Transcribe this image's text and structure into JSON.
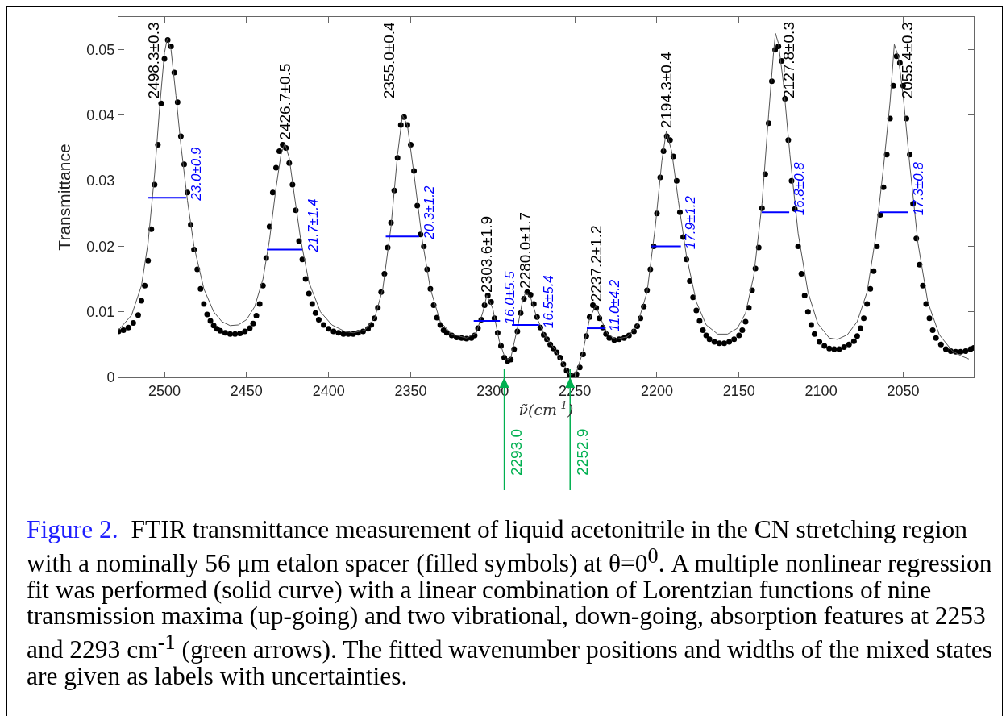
{
  "chart_data": {
    "type": "scatter",
    "xlabel": "ν̃(cm$^{-1}$)",
    "ylabel": "Transmittance",
    "xlim": [
      2528,
      2007
    ],
    "ylim": [
      0,
      0.055
    ],
    "xticks": [
      2500,
      2450,
      2400,
      2350,
      2300,
      2250,
      2200,
      2150,
      2100,
      2050
    ],
    "yticks": [
      0,
      0.01,
      0.02,
      0.03,
      0.04,
      0.05
    ],
    "grid": false,
    "ref_lines": [
      {
        "axis": "x",
        "value": 2293.0,
        "label": "2293.0",
        "color": "#00b050"
      },
      {
        "axis": "x",
        "value": 2252.9,
        "label": "2252.9",
        "color": "#00b050"
      }
    ],
    "series": [
      {
        "marker": "circle",
        "color": "#000000",
        "x": [
          2528,
          2525,
          2522,
          2519,
          2516,
          2514,
          2512,
          2510,
          2508,
          2506,
          2504,
          2502,
          2500,
          2498,
          2496,
          2494,
          2492,
          2490,
          2488,
          2486,
          2484,
          2482,
          2480,
          2478,
          2476,
          2474,
          2472,
          2470,
          2468,
          2466,
          2463,
          2460,
          2457,
          2454,
          2451,
          2448,
          2446,
          2444,
          2442,
          2440,
          2438,
          2436,
          2434,
          2432,
          2430,
          2428,
          2426,
          2424,
          2422,
          2420,
          2418,
          2416,
          2414,
          2412,
          2410,
          2408,
          2406,
          2403,
          2400,
          2397,
          2394,
          2391,
          2388,
          2385,
          2382,
          2379,
          2376,
          2374,
          2372,
          2370,
          2368,
          2366,
          2364,
          2362,
          2360,
          2358,
          2356,
          2354,
          2352,
          2350,
          2348,
          2346,
          2344,
          2342,
          2340,
          2338,
          2336,
          2334,
          2332,
          2330,
          2328,
          2325,
          2322,
          2319,
          2316,
          2313,
          2311,
          2309,
          2307,
          2305,
          2303,
          2301,
          2299,
          2297,
          2295,
          2293,
          2291,
          2289,
          2287,
          2285,
          2283,
          2281,
          2279,
          2277,
          2275,
          2273,
          2271,
          2269,
          2267,
          2265,
          2263,
          2261,
          2259,
          2257,
          2255,
          2253,
          2251,
          2249,
          2247,
          2245,
          2243,
          2241,
          2239,
          2237,
          2235,
          2233,
          2231,
          2229,
          2226,
          2223,
          2220,
          2217,
          2214,
          2212,
          2210,
          2208,
          2206,
          2204,
          2202,
          2200,
          2198,
          2196,
          2194,
          2192,
          2190,
          2188,
          2186,
          2184,
          2182,
          2180,
          2178,
          2176,
          2174,
          2172,
          2170,
          2168,
          2165,
          2162,
          2159,
          2156,
          2153,
          2150,
          2148,
          2146,
          2144,
          2142,
          2140,
          2138,
          2136,
          2134,
          2132,
          2130,
          2128,
          2126,
          2124,
          2122,
          2120,
          2118,
          2116,
          2114,
          2112,
          2110,
          2108,
          2106,
          2104,
          2101,
          2098,
          2095,
          2092,
          2089,
          2086,
          2083,
          2080,
          2078,
          2076,
          2074,
          2072,
          2070,
          2068,
          2066,
          2064,
          2062,
          2060,
          2058,
          2056,
          2054,
          2052,
          2050,
          2048,
          2046,
          2044,
          2042,
          2040,
          2038,
          2036,
          2034,
          2032,
          2030,
          2027,
          2024,
          2021,
          2018,
          2015,
          2012,
          2009,
          2007
        ],
        "values": [
          0.007,
          0.0072,
          0.0076,
          0.0083,
          0.0095,
          0.0117,
          0.014,
          0.0178,
          0.0226,
          0.0294,
          0.0355,
          0.0418,
          0.0486,
          0.0515,
          0.0505,
          0.0465,
          0.042,
          0.0368,
          0.0325,
          0.0282,
          0.0233,
          0.0195,
          0.0165,
          0.0135,
          0.0112,
          0.0096,
          0.0086,
          0.0079,
          0.0074,
          0.0071,
          0.0068,
          0.0066,
          0.0066,
          0.0067,
          0.007,
          0.0075,
          0.0082,
          0.0094,
          0.0112,
          0.014,
          0.0182,
          0.023,
          0.0282,
          0.032,
          0.0345,
          0.0355,
          0.035,
          0.0327,
          0.0294,
          0.0255,
          0.0208,
          0.018,
          0.015,
          0.0128,
          0.0112,
          0.0098,
          0.0088,
          0.008,
          0.0074,
          0.007,
          0.0068,
          0.0066,
          0.0066,
          0.0066,
          0.0068,
          0.007,
          0.0074,
          0.008,
          0.009,
          0.0106,
          0.013,
          0.0158,
          0.0198,
          0.0236,
          0.0285,
          0.0335,
          0.0385,
          0.0397,
          0.0385,
          0.0355,
          0.0315,
          0.0262,
          0.0218,
          0.02,
          0.0165,
          0.0135,
          0.011,
          0.0091,
          0.008,
          0.0072,
          0.0068,
          0.0064,
          0.0061,
          0.006,
          0.0059,
          0.006,
          0.0064,
          0.0075,
          0.0088,
          0.011,
          0.0125,
          0.0115,
          0.009,
          0.0068,
          0.0048,
          0.003,
          0.0025,
          0.0027,
          0.0043,
          0.007,
          0.0098,
          0.012,
          0.013,
          0.0126,
          0.0112,
          0.0092,
          0.0076,
          0.0065,
          0.0058,
          0.005,
          0.0044,
          0.0038,
          0.003,
          0.002,
          0.001,
          0.0003,
          0.0002,
          0.0005,
          0.0015,
          0.0035,
          0.0063,
          0.0092,
          0.011,
          0.0106,
          0.009,
          0.0076,
          0.0066,
          0.006,
          0.0057,
          0.0058,
          0.006,
          0.0064,
          0.007,
          0.0078,
          0.009,
          0.0108,
          0.0133,
          0.0165,
          0.02,
          0.025,
          0.0305,
          0.0345,
          0.0368,
          0.0362,
          0.0337,
          0.03,
          0.0252,
          0.0214,
          0.018,
          0.0147,
          0.0122,
          0.0102,
          0.0086,
          0.0072,
          0.0064,
          0.0058,
          0.0054,
          0.0052,
          0.0052,
          0.0054,
          0.0058,
          0.0064,
          0.0072,
          0.0085,
          0.0106,
          0.0133,
          0.0166,
          0.0198,
          0.0258,
          0.031,
          0.0388,
          0.0452,
          0.05,
          0.0505,
          0.0483,
          0.0425,
          0.0362,
          0.03,
          0.0257,
          0.02,
          0.0158,
          0.0125,
          0.01,
          0.008,
          0.0066,
          0.0054,
          0.0048,
          0.0044,
          0.0043,
          0.0043,
          0.0046,
          0.005,
          0.0055,
          0.0063,
          0.0075,
          0.009,
          0.0112,
          0.0135,
          0.0162,
          0.02,
          0.0248,
          0.029,
          0.034,
          0.0395,
          0.0445,
          0.049,
          0.048,
          0.0445,
          0.0395,
          0.034,
          0.0265,
          0.0212,
          0.0172,
          0.014,
          0.0112,
          0.009,
          0.0072,
          0.006,
          0.005,
          0.0043,
          0.004,
          0.0039,
          0.0039,
          0.004,
          0.0043,
          0.0045
        ]
      },
      {
        "type": "line",
        "marker": "none",
        "color": "#555555",
        "x": [
          2528,
          2520,
          2514,
          2510,
          2506,
          2503,
          2500,
          2498.3,
          2496,
          2493,
          2490,
          2486,
          2482,
          2476,
          2470,
          2465,
          2460,
          2455,
          2450,
          2445,
          2440,
          2436,
          2432,
          2429,
          2426.7,
          2424,
          2421,
          2417,
          2412,
          2405,
          2398,
          2390,
          2385,
          2378,
          2372,
          2367,
          2362,
          2358,
          2355,
          2352,
          2348,
          2343,
          2338,
          2332,
          2325,
          2316,
          2310,
          2306,
          2303.6,
          2300,
          2296,
          2292,
          2289,
          2285,
          2282,
          2280,
          2277,
          2273,
          2268,
          2262,
          2257,
          2253,
          2249,
          2245,
          2241,
          2237.2,
          2234,
          2230,
          2225,
          2218,
          2212,
          2206,
          2201,
          2197,
          2194.3,
          2191,
          2187,
          2182,
          2176,
          2170,
          2163,
          2157,
          2151,
          2146,
          2141,
          2136,
          2132,
          2129,
          2127.8,
          2126,
          2123,
          2119,
          2114,
          2108,
          2102,
          2095,
          2090,
          2084,
          2078,
          2072,
          2067,
          2062,
          2058,
          2055.4,
          2053,
          2050,
          2046,
          2041,
          2035,
          2028,
          2020,
          2014,
          2010
        ],
        "values": [
          0.0072,
          0.0095,
          0.014,
          0.0205,
          0.031,
          0.041,
          0.0495,
          0.0517,
          0.05,
          0.043,
          0.0355,
          0.027,
          0.02,
          0.0135,
          0.01,
          0.0085,
          0.0079,
          0.008,
          0.0088,
          0.0108,
          0.015,
          0.021,
          0.029,
          0.034,
          0.0357,
          0.0335,
          0.028,
          0.021,
          0.0145,
          0.01,
          0.008,
          0.007,
          0.0068,
          0.0072,
          0.009,
          0.0135,
          0.023,
          0.034,
          0.04,
          0.0385,
          0.031,
          0.021,
          0.0135,
          0.0085,
          0.0066,
          0.006,
          0.0068,
          0.01,
          0.0125,
          0.0105,
          0.0055,
          0.0026,
          0.003,
          0.0075,
          0.0115,
          0.013,
          0.0122,
          0.009,
          0.0062,
          0.0042,
          0.002,
          0.0003,
          0.0008,
          0.004,
          0.009,
          0.011,
          0.0088,
          0.0066,
          0.0058,
          0.0062,
          0.008,
          0.013,
          0.023,
          0.033,
          0.0375,
          0.0345,
          0.027,
          0.0185,
          0.0115,
          0.008,
          0.0066,
          0.0066,
          0.0075,
          0.0098,
          0.0155,
          0.0265,
          0.04,
          0.0495,
          0.0525,
          0.051,
          0.045,
          0.034,
          0.022,
          0.013,
          0.0082,
          0.006,
          0.0058,
          0.0065,
          0.0085,
          0.013,
          0.021,
          0.032,
          0.042,
          0.0508,
          0.049,
          0.043,
          0.0325,
          0.0205,
          0.0115,
          0.0065,
          0.004,
          0.0032,
          0.0028
        ]
      },
      {
        "type": "line",
        "marker": "none",
        "color": "#0000ff",
        "x": [
          2509.8,
          2486.8,
          2460,
          2437.6,
          2416.0,
          2390,
          2365.2,
          2344.9,
          2320,
          2311.6,
          2295.6,
          2290,
          2288.3,
          2271.8,
          2260,
          2242.7,
          2231.7,
          2215,
          2203.3,
          2185.4,
          2160,
          2136.2,
          2119.4,
          2090,
          2064.1,
          2046.8
        ],
        "values": [
          0.0274,
          0.0274,
          null,
          0.0195,
          0.0195,
          null,
          0.0215,
          0.0215,
          null,
          0.0086,
          0.0086,
          null,
          0.008,
          0.008,
          null,
          0.0075,
          0.0075,
          null,
          0.02,
          0.02,
          null,
          0.0252,
          0.0252,
          null,
          0.0252,
          0.0252
        ]
      }
    ],
    "annotations": [
      {
        "text": "2498.3±0.3",
        "x": 2498.3,
        "y": 0.0517
      },
      {
        "text": "2426.7±0.5",
        "x": 2426.7,
        "y": 0.0357
      },
      {
        "text": "2355.0±0.4",
        "x": 2355.0,
        "y": 0.04
      },
      {
        "text": "2303.6±1.9",
        "x": 2303.6,
        "y": 0.0125
      },
      {
        "text": "2280.0±1.7",
        "x": 2280.0,
        "y": 0.013
      },
      {
        "text": "2237.2±1.2",
        "x": 2237.2,
        "y": 0.011
      },
      {
        "text": "2194.3±0.4",
        "x": 2194.3,
        "y": 0.0375
      },
      {
        "text": "2127.8±0.3",
        "x": 2127.8,
        "y": 0.0525
      },
      {
        "text": "2055.4±0.3",
        "x": 2055.4,
        "y": 0.0508
      },
      {
        "text": "23.0±0.9",
        "x": 2486.8,
        "y": 0.0274
      },
      {
        "text": "21.7±1.4",
        "x": 2416.0,
        "y": 0.0195
      },
      {
        "text": "20.3±1.2",
        "x": 2344.9,
        "y": 0.0215
      },
      {
        "text": "16.0±5.5",
        "x": 2295.6,
        "y": 0.0086
      },
      {
        "text": "16.5±5.4",
        "x": 2271.8,
        "y": 0.008
      },
      {
        "text": "11.0±4.2",
        "x": 2231.7,
        "y": 0.0075
      },
      {
        "text": "17.9±1.2",
        "x": 2185.4,
        "y": 0.02
      },
      {
        "text": "16.8±0.8",
        "x": 2119.4,
        "y": 0.0252
      },
      {
        "text": "17.3±0.8",
        "x": 2046.8,
        "y": 0.0252
      },
      "Figure 2.",
      "FTIR transmittance measurement of liquid acetonitrile in the CN stretching region with a nominally 56 μm etalon spacer (filled symbols) at θ=0$^{0}$.  A multiple nonlinear regression fit was performed (solid curve) with a linear combination of Lorentzian functions of nine transmission maxima (up-going) and two vibrational, down-going, absorption features at 2253 and 2293 cm$^{-1}$ (green arrows).  The fitted wavenumber positions and widths of the mixed states are given as labels with uncertainties."
    ]
  }
}
